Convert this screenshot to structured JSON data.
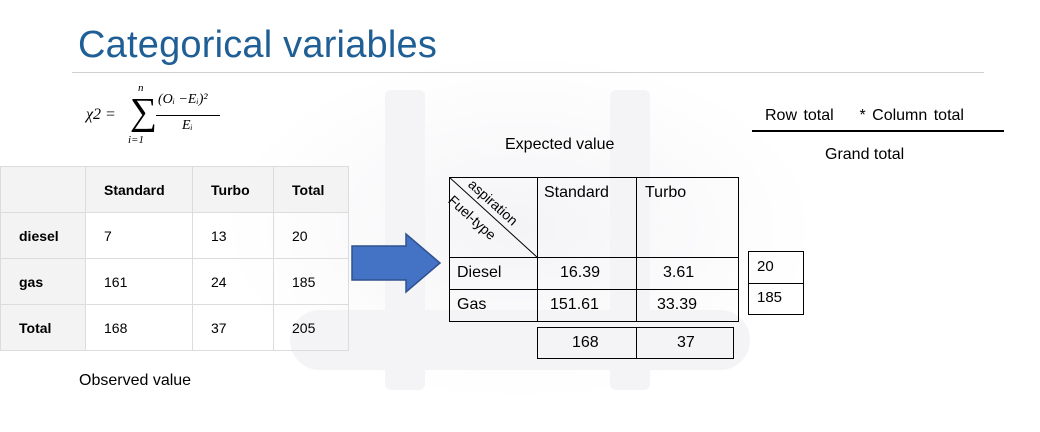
{
  "title": "Categorical variables",
  "formula": {
    "lhs": "χ2 =",
    "sigma": "∑",
    "upper": "n",
    "lower": "i=1",
    "numerator": "(Oᵢ −Eᵢ)²",
    "denominator": "Eᵢ"
  },
  "observed": {
    "headers": [
      "",
      "Standard",
      "Turbo",
      "Total"
    ],
    "rows": [
      {
        "label": "diesel",
        "values": [
          "7",
          "13",
          "20"
        ]
      },
      {
        "label": "gas",
        "values": [
          "161",
          "24",
          "185"
        ]
      },
      {
        "label": "Total",
        "values": [
          "168",
          "37",
          "205"
        ]
      }
    ],
    "caption": "Observed value"
  },
  "expected": {
    "caption": "Expected value",
    "corner_top": "aspiration",
    "corner_bottom": "Fuel-type",
    "col_headers": [
      "Standard",
      "Turbo"
    ],
    "rows": [
      {
        "label": "Diesel",
        "values": [
          "16.39",
          "3.61"
        ]
      },
      {
        "label": "Gas",
        "values": [
          "151.61",
          "33.39"
        ]
      }
    ],
    "col_totals": [
      "168",
      "37"
    ],
    "row_totals": [
      "20",
      "185"
    ]
  },
  "fraction": {
    "numerator": "Row total    * Column total",
    "denominator": "Grand total"
  },
  "colors": {
    "title": "#1f5f96",
    "arrow": "#4472c4"
  }
}
